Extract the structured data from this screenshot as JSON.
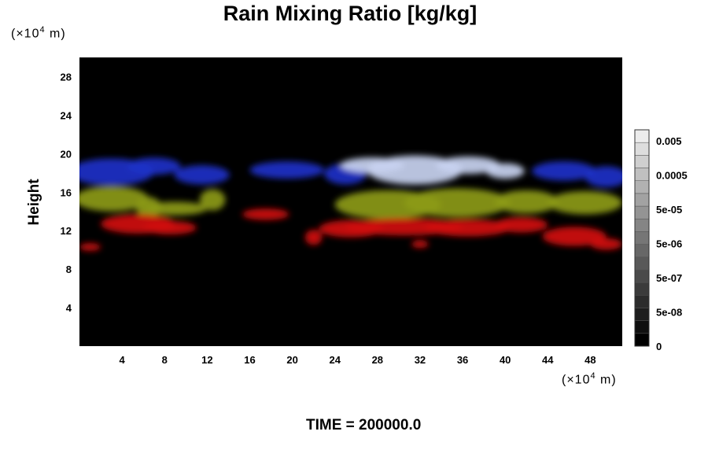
{
  "chart_data": {
    "type": "heatmap",
    "title": "Rain Mixing Ratio [kg/kg]",
    "ylabel": "Height",
    "x_unit": {
      "prefix": "(×10",
      "exp": "4",
      "suffix": " m)"
    },
    "y_unit": {
      "prefix": "(×10",
      "exp": "4",
      "suffix": " m)"
    },
    "xlim": [
      0,
      51
    ],
    "ylim": [
      0,
      30
    ],
    "xticks": [
      4,
      8,
      12,
      16,
      20,
      24,
      28,
      32,
      36,
      40,
      44,
      48
    ],
    "yticks": [
      4,
      8,
      12,
      16,
      20,
      24,
      28
    ],
    "colorbar": {
      "labels": [
        "0.005",
        "0.0005",
        "5e-05",
        "5e-06",
        "5e-07",
        "5e-08",
        "0"
      ],
      "levels": 17,
      "gray_range": [
        "#000000",
        "#ececec"
      ]
    },
    "layers": [
      {
        "color": "#1e32c8",
        "blobs": [
          {
            "x": 3.0,
            "y": 18.1,
            "rx": 4.0,
            "ry": 1.4
          },
          {
            "x": 7.0,
            "y": 18.7,
            "rx": 2.5,
            "ry": 0.9
          },
          {
            "x": 11.5,
            "y": 17.8,
            "rx": 2.6,
            "ry": 1.0
          },
          {
            "x": 19.5,
            "y": 18.3,
            "rx": 3.5,
            "ry": 0.9
          },
          {
            "x": 25.0,
            "y": 17.9,
            "rx": 2.0,
            "ry": 1.1
          },
          {
            "x": 45.5,
            "y": 18.2,
            "rx": 3.0,
            "ry": 1.0
          },
          {
            "x": 49.5,
            "y": 17.6,
            "rx": 2.0,
            "ry": 1.1
          }
        ]
      },
      {
        "color": "#c8d2f0",
        "blobs": [
          {
            "x": 27.5,
            "y": 18.8,
            "rx": 3.0,
            "ry": 0.8
          },
          {
            "x": 31.5,
            "y": 18.3,
            "rx": 4.5,
            "ry": 1.5
          },
          {
            "x": 36.5,
            "y": 18.8,
            "rx": 3.0,
            "ry": 0.9
          },
          {
            "x": 40.0,
            "y": 18.2,
            "rx": 1.8,
            "ry": 0.8
          }
        ]
      },
      {
        "color": "#8c9a14",
        "blobs": [
          {
            "x": 3.0,
            "y": 15.3,
            "rx": 3.5,
            "ry": 1.3
          },
          {
            "x": 6.5,
            "y": 14.4,
            "rx": 1.2,
            "ry": 1.1
          },
          {
            "x": 9.0,
            "y": 14.3,
            "rx": 3.0,
            "ry": 0.7
          },
          {
            "x": 12.5,
            "y": 15.2,
            "rx": 1.2,
            "ry": 1.1
          },
          {
            "x": 29.0,
            "y": 14.7,
            "rx": 5.0,
            "ry": 1.5
          },
          {
            "x": 35.5,
            "y": 14.9,
            "rx": 5.0,
            "ry": 1.5
          },
          {
            "x": 42.0,
            "y": 15.0,
            "rx": 3.0,
            "ry": 1.2
          },
          {
            "x": 47.5,
            "y": 14.9,
            "rx": 3.5,
            "ry": 1.2
          }
        ]
      },
      {
        "color": "#d01010",
        "blobs": [
          {
            "x": 5.5,
            "y": 12.7,
            "rx": 3.5,
            "ry": 1.0
          },
          {
            "x": 8.5,
            "y": 12.3,
            "rx": 2.5,
            "ry": 0.7
          },
          {
            "x": 1.0,
            "y": 10.3,
            "rx": 1.0,
            "ry": 0.4
          },
          {
            "x": 17.5,
            "y": 13.7,
            "rx": 2.2,
            "ry": 0.6
          },
          {
            "x": 22.0,
            "y": 11.3,
            "rx": 0.8,
            "ry": 0.8
          },
          {
            "x": 25.5,
            "y": 12.2,
            "rx": 3.0,
            "ry": 0.9
          },
          {
            "x": 30.5,
            "y": 12.4,
            "rx": 5.5,
            "ry": 0.9
          },
          {
            "x": 36.5,
            "y": 12.3,
            "rx": 4.0,
            "ry": 0.9
          },
          {
            "x": 41.5,
            "y": 12.6,
            "rx": 2.5,
            "ry": 0.8
          },
          {
            "x": 32.0,
            "y": 10.6,
            "rx": 0.8,
            "ry": 0.4
          },
          {
            "x": 46.5,
            "y": 11.4,
            "rx": 3.0,
            "ry": 1.0
          },
          {
            "x": 49.5,
            "y": 10.6,
            "rx": 1.5,
            "ry": 0.6
          }
        ]
      }
    ]
  },
  "footer": {
    "time_label": "TIME = 200000.0"
  }
}
